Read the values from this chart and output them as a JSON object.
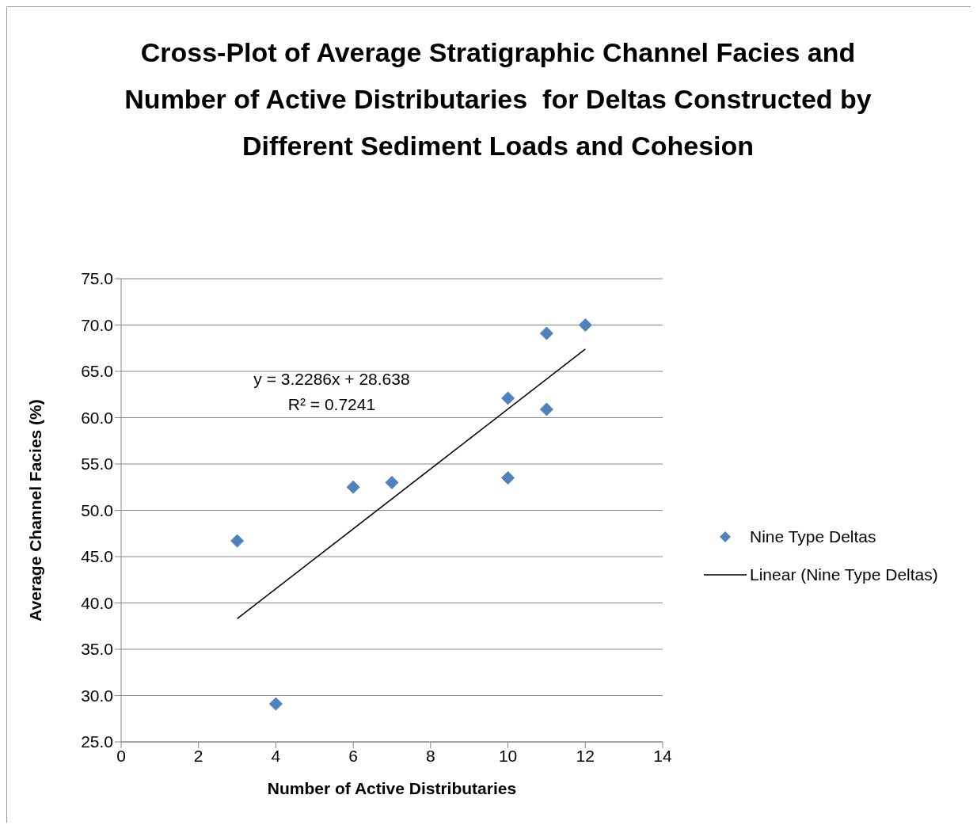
{
  "chart_data": {
    "type": "scatter",
    "title": "Cross-Plot of Average Stratigraphic Channel Facies and Number of Active Distributaries  for Deltas Constructed by Different Sediment Loads and Cohesion",
    "xlabel": "Number of Active Distributaries",
    "ylabel": "Average Channel Facies (%)",
    "series": [
      {
        "name": "Nine Type Deltas",
        "color": "#4f81bd",
        "marker": "diamond",
        "x": [
          3,
          4,
          6,
          7,
          10,
          10,
          11,
          11,
          12
        ],
        "values": [
          46.7,
          29.1,
          52.5,
          53.0,
          53.5,
          62.1,
          69.1,
          60.9,
          70.0
        ]
      },
      {
        "name": "Linear (Nine Type Deltas)",
        "type": "line",
        "color": "#000000",
        "marker": "none",
        "x": [
          3,
          12
        ],
        "values": [
          38.3,
          67.4
        ]
      }
    ],
    "annotations": [
      "y = 3.2286x + 28.638",
      "R² = 0.7241"
    ],
    "xlim": [
      0,
      14
    ],
    "xticks": [
      0,
      2,
      4,
      6,
      8,
      10,
      12,
      14
    ],
    "ylim": [
      25,
      75
    ],
    "yticks": [
      {
        "value": 25,
        "label": "25.0"
      },
      {
        "value": 30,
        "label": "30.0"
      },
      {
        "value": 35,
        "label": "35.0"
      },
      {
        "value": 40,
        "label": "40.0"
      },
      {
        "value": 45,
        "label": "45.0"
      },
      {
        "value": 50,
        "label": "50.0"
      },
      {
        "value": 55,
        "label": "55.0"
      },
      {
        "value": 60,
        "label": "60.0"
      },
      {
        "value": 65,
        "label": "65.0"
      },
      {
        "value": 70,
        "label": "70.0"
      },
      {
        "value": 75,
        "label": "75.0"
      }
    ],
    "grid": "y",
    "legend": "right"
  }
}
